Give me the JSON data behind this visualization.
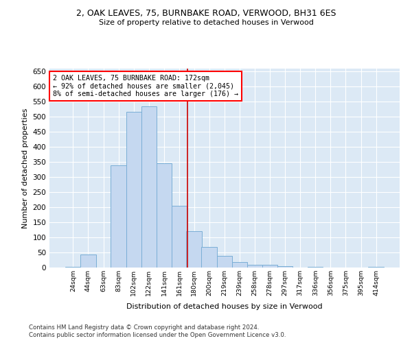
{
  "title": "2, OAK LEAVES, 75, BURNBAKE ROAD, VERWOOD, BH31 6ES",
  "subtitle": "Size of property relative to detached houses in Verwood",
  "xlabel": "Distribution of detached houses by size in Verwood",
  "ylabel": "Number of detached properties",
  "bar_color": "#c5d8f0",
  "bar_edge_color": "#7aaed6",
  "background_color": "#dce9f5",
  "fig_background": "#ffffff",
  "grid_color": "#ffffff",
  "annotation_text": "2 OAK LEAVES, 75 BURNBAKE ROAD: 172sqm\n← 92% of detached houses are smaller (2,045)\n8% of semi-detached houses are larger (176) →",
  "vline_x": 172,
  "vline_color": "#cc0000",
  "categories": [
    "24sqm",
    "44sqm",
    "63sqm",
    "83sqm",
    "102sqm",
    "122sqm",
    "141sqm",
    "161sqm",
    "180sqm",
    "200sqm",
    "219sqm",
    "239sqm",
    "258sqm",
    "278sqm",
    "297sqm",
    "317sqm",
    "336sqm",
    "356sqm",
    "375sqm",
    "395sqm",
    "414sqm"
  ],
  "bin_edges": [
    14.5,
    34.5,
    53.5,
    73.5,
    92.5,
    112.5,
    131.5,
    151.5,
    170.5,
    189.5,
    209.5,
    228.5,
    248.5,
    267.5,
    287.5,
    306.5,
    326.5,
    345.5,
    365.5,
    384.5,
    404.5,
    423.5
  ],
  "values": [
    3,
    43,
    0,
    339,
    517,
    535,
    345,
    205,
    120,
    68,
    38,
    18,
    9,
    9,
    4,
    0,
    2,
    0,
    0,
    0,
    3
  ],
  "ylim": [
    0,
    660
  ],
  "yticks": [
    0,
    50,
    100,
    150,
    200,
    250,
    300,
    350,
    400,
    450,
    500,
    550,
    600,
    650
  ],
  "footer1": "Contains HM Land Registry data © Crown copyright and database right 2024.",
  "footer2": "Contains public sector information licensed under the Open Government Licence v3.0."
}
